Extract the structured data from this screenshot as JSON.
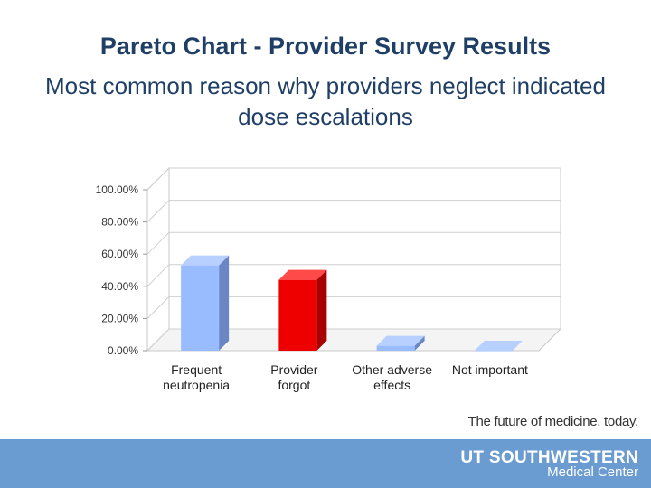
{
  "title": "Pareto Chart - Provider Survey Results",
  "subtitle": "Most common reason why providers neglect indicated dose escalations",
  "chart_data": {
    "type": "bar",
    "categories": [
      [
        "Frequent",
        "neutropenia"
      ],
      [
        "Provider",
        "forgot"
      ],
      [
        "Other adverse",
        "effects"
      ],
      [
        "Not important"
      ]
    ],
    "values": [
      0.53,
      0.44,
      0.03,
      0.0
    ],
    "y_tick_labels": [
      "0.00%",
      "20.00%",
      "40.00%",
      "60.00%",
      "80.00%",
      "100.00%"
    ],
    "ylim": [
      0,
      1.0
    ],
    "grid": true,
    "three_d": true,
    "legend": "none",
    "bar_colors": [
      {
        "front": "#99bbff",
        "side": "#6a86c4",
        "top": "#b8d0ff"
      },
      {
        "front": "#ee0000",
        "side": "#a80000",
        "top": "#ff4a4a"
      },
      {
        "front": "#99bbff",
        "side": "#6a86c4",
        "top": "#b8d0ff"
      },
      {
        "front": "#99bbff",
        "side": "#6a86c4",
        "top": "#b8d0ff"
      }
    ]
  },
  "footer": {
    "tagline": "The future of medicine, today.",
    "brand_main": "UT SOUTHWESTERN",
    "brand_sub": "Medical Center",
    "bar_color": "#6a9bd1"
  }
}
